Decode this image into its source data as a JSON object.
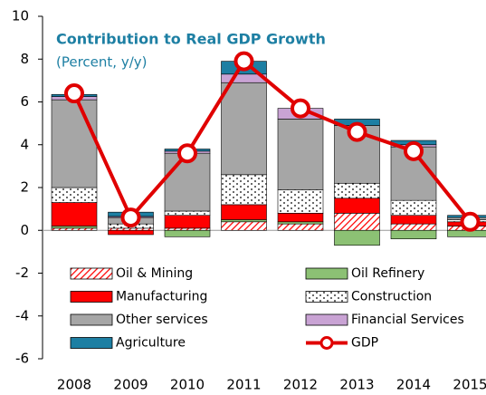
{
  "chart_data": {
    "type": "bar",
    "title": "Contribution to Real GDP Growth",
    "subtitle": "(Percent, y/y)",
    "categories": [
      "2008",
      "2009",
      "2010",
      "2011",
      "2012",
      "2013",
      "2014",
      "2015"
    ],
    "ylim": [
      -6,
      10
    ],
    "yticks": [
      -6,
      -4,
      -2,
      0,
      2,
      4,
      6,
      8,
      10
    ],
    "stacked": true,
    "series": [
      {
        "name": "Oil & Mining",
        "color": "#ff0000",
        "pattern": "hatch",
        "values": [
          0.1,
          0.1,
          0.1,
          0.4,
          0.3,
          0.8,
          0.3,
          0.2
        ]
      },
      {
        "name": "Oil Refinery",
        "color": "#8cc174",
        "values": [
          0.1,
          0,
          -0.3,
          0.1,
          0.1,
          -0.7,
          -0.4,
          -0.3
        ]
      },
      {
        "name": "Manufacturing",
        "color": "#ff0000",
        "values": [
          1.1,
          -0.2,
          0.6,
          0.7,
          0.4,
          0.7,
          0.4,
          0.2
        ]
      },
      {
        "name": "Construction",
        "color": "#ffffff",
        "pattern": "dots",
        "values": [
          0.7,
          0.2,
          0.2,
          1.4,
          1.1,
          0.7,
          0.7,
          0.1
        ]
      },
      {
        "name": "Other services",
        "color": "#a6a6a6",
        "values": [
          4.1,
          0.3,
          2.7,
          4.3,
          3.3,
          2.7,
          2.5,
          0.1
        ]
      },
      {
        "name": "Financial Services",
        "color": "#c9a3d4",
        "values": [
          0.15,
          0.05,
          0.1,
          0.4,
          0.5,
          0,
          0.1,
          0
        ]
      },
      {
        "name": "Agriculture",
        "color": "#1d7fa3",
        "values": [
          0.1,
          0.2,
          0.1,
          0.6,
          0,
          0.3,
          0.2,
          0.1
        ]
      },
      {
        "name": "GDP",
        "type": "line",
        "color": "#e00000",
        "values": [
          6.4,
          0.6,
          3.6,
          7.9,
          5.7,
          4.6,
          3.7,
          0.4
        ]
      }
    ]
  }
}
